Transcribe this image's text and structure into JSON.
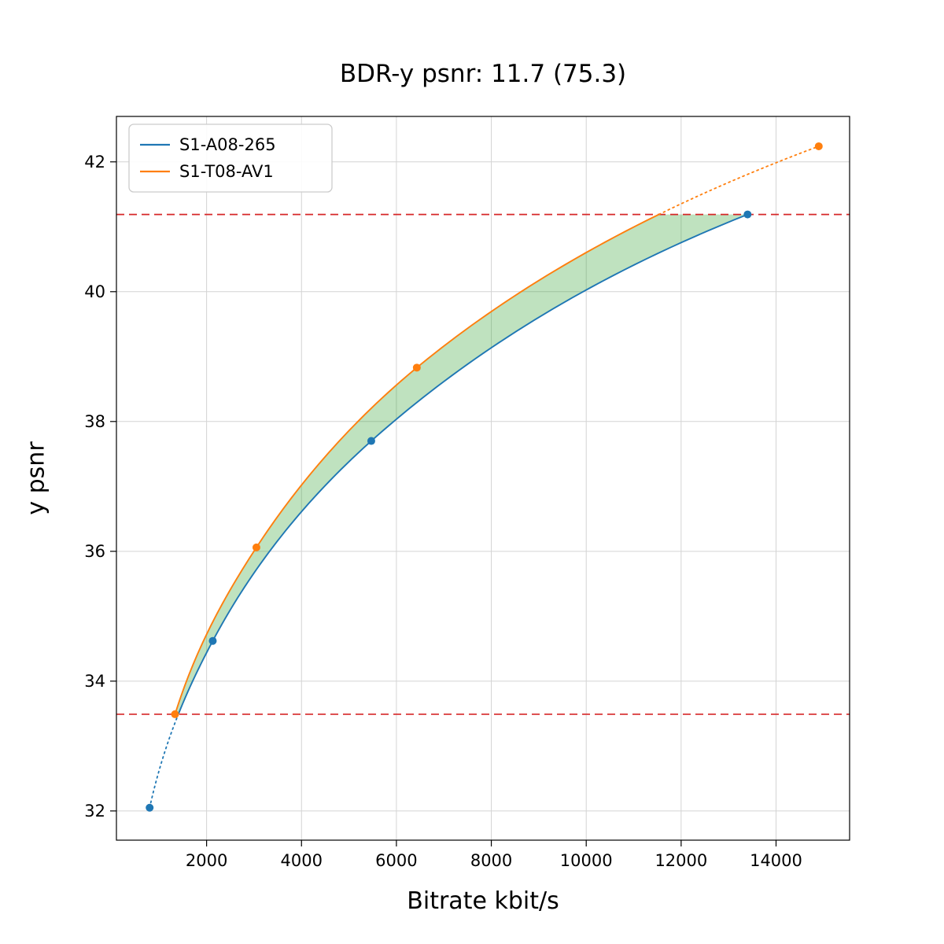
{
  "title": "BDR-y psnr: 11.7 (75.3)",
  "background_color": "#ffffff",
  "chart_data": {
    "type": "line",
    "title": "BDR-y psnr: 11.7 (75.3)",
    "xlabel": "Bitrate kbit/s",
    "ylabel": "y psnr",
    "xlim": [
      100,
      15550
    ],
    "ylim": [
      31.55,
      42.7
    ],
    "xticks": [
      2000,
      4000,
      6000,
      8000,
      10000,
      12000,
      14000
    ],
    "yticks": [
      32,
      34,
      36,
      38,
      40,
      42
    ],
    "grid": true,
    "grid_color": "#d4d4d4",
    "legend_position": "upper left",
    "series": [
      {
        "name": "S1-A08-265",
        "color": "#1f77b4",
        "points": [
          [
            800,
            32.05
          ],
          [
            2130,
            34.62
          ],
          [
            5470,
            37.7
          ],
          [
            13400,
            41.19
          ]
        ]
      },
      {
        "name": "S1-T08-AV1",
        "color": "#ff7f0e",
        "points": [
          [
            1335,
            33.49
          ],
          [
            3050,
            36.06
          ],
          [
            6430,
            38.83
          ],
          [
            14900,
            42.24
          ]
        ]
      }
    ],
    "overlap_lines": {
      "color": "#d62728",
      "style": "dashed",
      "lower": 33.49,
      "upper": 41.19
    },
    "fill_between": {
      "color": "#2ca02c",
      "opacity": 0.3
    }
  }
}
